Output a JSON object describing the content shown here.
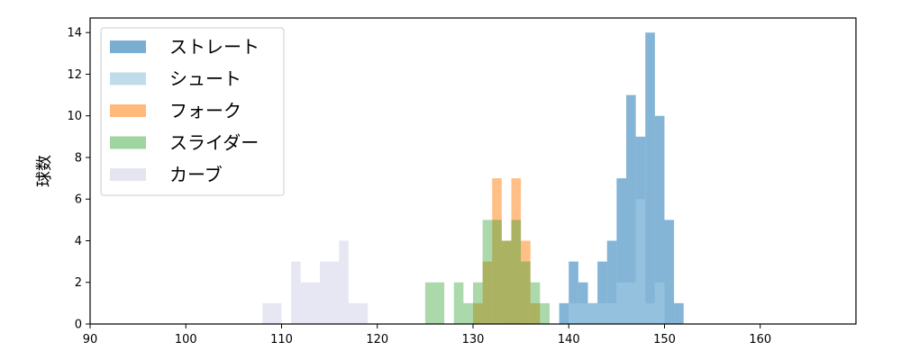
{
  "chart_data": {
    "type": "histogram",
    "title": "",
    "xlabel": "",
    "ylabel": "球数",
    "xlim": [
      90,
      170
    ],
    "ylim": [
      0,
      14.7
    ],
    "xticks": [
      90,
      100,
      110,
      120,
      130,
      140,
      150,
      160
    ],
    "yticks": [
      0,
      2,
      4,
      6,
      8,
      10,
      12,
      14
    ],
    "bin_width": 1,
    "grid": false,
    "legend_position": "top-left",
    "series": [
      {
        "name": "ストレート",
        "color": "#1f77b4",
        "opacity": 0.55,
        "bins": [
          [
            139,
            1
          ],
          [
            140,
            3
          ],
          [
            141,
            2
          ],
          [
            142,
            1
          ],
          [
            143,
            3
          ],
          [
            144,
            4
          ],
          [
            145,
            7
          ],
          [
            146,
            11
          ],
          [
            147,
            9
          ],
          [
            148,
            14
          ],
          [
            149,
            10
          ],
          [
            150,
            5
          ],
          [
            151,
            1
          ]
        ]
      },
      {
        "name": "シュート",
        "color": "#9ecae1",
        "opacity": 0.6,
        "bins": [
          [
            140,
            1
          ],
          [
            141,
            1
          ],
          [
            142,
            1
          ],
          [
            143,
            1
          ],
          [
            144,
            1
          ],
          [
            145,
            2
          ],
          [
            146,
            2
          ],
          [
            147,
            6
          ],
          [
            148,
            1
          ],
          [
            149,
            2
          ]
        ]
      },
      {
        "name": "フォーク",
        "color": "#ff7f0e",
        "opacity": 0.5,
        "bins": [
          [
            130,
            1
          ],
          [
            131,
            3
          ],
          [
            132,
            7
          ],
          [
            133,
            4
          ],
          [
            134,
            7
          ],
          [
            135,
            4
          ],
          [
            136,
            1
          ]
        ]
      },
      {
        "name": "スライダー",
        "color": "#2ca02c",
        "opacity": 0.4,
        "bins": [
          [
            125,
            2
          ],
          [
            126,
            2
          ],
          [
            128,
            2
          ],
          [
            129,
            1
          ],
          [
            130,
            2
          ],
          [
            131,
            5
          ],
          [
            132,
            5
          ],
          [
            133,
            4
          ],
          [
            134,
            5
          ],
          [
            135,
            3
          ],
          [
            136,
            2
          ],
          [
            137,
            1
          ]
        ]
      },
      {
        "name": "カーブ",
        "color": "#d0d0e8",
        "opacity": 0.5,
        "bins": [
          [
            108,
            1
          ],
          [
            109,
            1
          ],
          [
            111,
            3
          ],
          [
            112,
            2
          ],
          [
            113,
            2
          ],
          [
            114,
            3
          ],
          [
            115,
            3
          ],
          [
            116,
            4
          ],
          [
            117,
            1
          ],
          [
            118,
            1
          ]
        ]
      }
    ]
  }
}
